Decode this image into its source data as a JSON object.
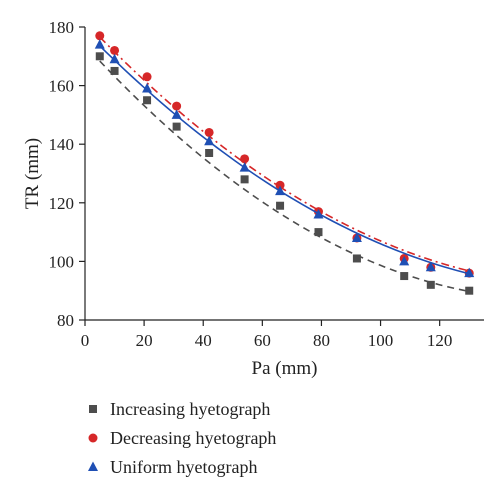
{
  "chart_data": {
    "type": "scatter",
    "title": "",
    "xlabel": "Pa (mm)",
    "ylabel": "TR (mm)",
    "xlim": [
      0,
      135
    ],
    "ylim": [
      80,
      180
    ],
    "xticks": [
      0,
      20,
      40,
      60,
      80,
      100,
      120
    ],
    "yticks": [
      80,
      100,
      120,
      140,
      160,
      180
    ],
    "grid": false,
    "legend_position": "bottom",
    "series": [
      {
        "name": "Increasing hyetograph",
        "marker": "square",
        "color": "#4d4d4d",
        "line_style": "dashed",
        "x": [
          5,
          10,
          21,
          31,
          42,
          54,
          66,
          79,
          92,
          108,
          117,
          130
        ],
        "y": [
          170,
          165,
          155,
          146,
          137,
          128,
          119,
          110,
          101,
          95,
          92,
          90
        ],
        "fit": {
          "a": 173.8,
          "b": -1.1015,
          "c": 0.0035
        }
      },
      {
        "name": "Decreasing hyetograph",
        "marker": "circle",
        "color": "#d62728",
        "line_style": "dashdot",
        "x": [
          5,
          10,
          21,
          31,
          42,
          54,
          66,
          79,
          92,
          108,
          117,
          130
        ],
        "y": [
          177,
          172,
          163,
          153,
          144,
          135,
          126,
          117,
          108,
          101,
          98,
          96
        ],
        "fit": {
          "a": 181.8,
          "b": -1.0612,
          "c": 0.00313
        }
      },
      {
        "name": "Uniform hyetograph",
        "marker": "triangle",
        "color": "#1f4fb4",
        "line_style": "solid",
        "x": [
          5,
          10,
          21,
          31,
          42,
          54,
          66,
          79,
          92,
          108,
          117,
          130
        ],
        "y": [
          174,
          169,
          159,
          150,
          141,
          132,
          124,
          116,
          108,
          100,
          98,
          96
        ],
        "fit": {
          "a": 178.6,
          "b": -1.023,
          "c": 0.00297
        }
      }
    ]
  }
}
